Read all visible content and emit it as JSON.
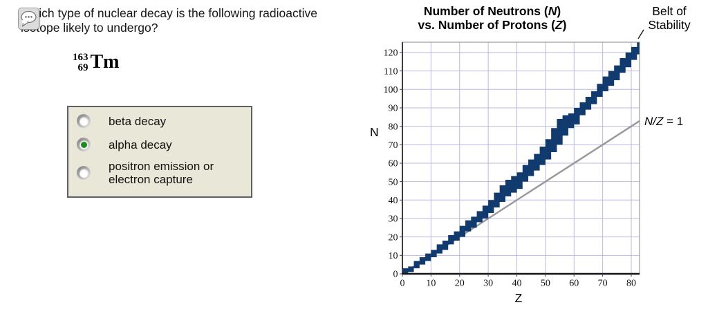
{
  "question": {
    "line1": "Which type of nuclear decay is the following radioactive",
    "line2": "isotope likely to undergo?"
  },
  "isotope": {
    "mass_number": "163",
    "atomic_number": "69",
    "symbol": "Tm"
  },
  "answers": {
    "options": [
      {
        "label": "beta decay",
        "selected": false
      },
      {
        "label": "alpha decay",
        "selected": true
      },
      {
        "lines": [
          "positron emission or",
          "electron capture"
        ],
        "selected": false
      }
    ]
  },
  "chart": {
    "title_line1_pre": "Number of Neutrons (",
    "title_line1_var": "N",
    "title_line1_post": ")",
    "title_line2_pre": "vs. Number of Protons (",
    "title_line2_var": "Z",
    "title_line2_post": ")",
    "belt_label_line1": "Belt of",
    "belt_label_line2": "Stability",
    "line_label_var": "N/Z",
    "line_label_post": " = 1",
    "ylabel": "N",
    "xlabel": "Z"
  },
  "chart_data": {
    "type": "area",
    "title": "Number of Neutrons (N) vs. Number of Protons (Z)",
    "xlabel": "Z",
    "ylabel": "N",
    "xlim": [
      0,
      82.9
    ],
    "ylim": [
      0,
      125.6
    ],
    "xticks": [
      0,
      10,
      20,
      30,
      40,
      50,
      60,
      70,
      80
    ],
    "yticks": [
      0,
      10,
      20,
      30,
      40,
      50,
      60,
      70,
      80,
      90,
      100,
      110,
      120
    ],
    "grid": true,
    "legend_position": "none",
    "annotations": [
      "Belt of Stability",
      "N/Z = 1"
    ],
    "colors": {
      "grid": "#b9b9e0",
      "belt": "#113a6e",
      "ref_line": "#9a9a9a"
    },
    "ref_line": {
      "label": "N/Z = 1",
      "from": [
        0,
        0
      ],
      "to": [
        82.9,
        82.9
      ]
    },
    "belt_band": {
      "samples": [
        [
          0,
          0,
          3
        ],
        [
          2,
          1,
          4
        ],
        [
          4,
          3,
          7
        ],
        [
          6,
          5,
          9
        ],
        [
          8,
          7,
          11
        ],
        [
          10,
          9,
          13
        ],
        [
          12,
          11,
          16
        ],
        [
          14,
          13,
          18
        ],
        [
          16,
          16,
          21
        ],
        [
          18,
          18,
          23
        ],
        [
          20,
          20,
          26
        ],
        [
          22,
          23,
          29
        ],
        [
          24,
          25,
          31
        ],
        [
          26,
          28,
          34
        ],
        [
          28,
          30,
          37
        ],
        [
          30,
          33,
          40
        ],
        [
          32,
          36,
          44
        ],
        [
          34,
          39,
          48
        ],
        [
          36,
          42,
          51
        ],
        [
          38,
          44,
          53
        ],
        [
          40,
          46,
          55
        ],
        [
          42,
          50,
          59
        ],
        [
          44,
          53,
          62
        ],
        [
          46,
          56,
          65
        ],
        [
          48,
          59,
          69
        ],
        [
          50,
          62,
          73
        ],
        [
          52,
          66,
          79
        ],
        [
          54,
          70,
          84
        ],
        [
          56,
          75,
          86
        ],
        [
          58,
          79,
          87
        ],
        [
          60,
          83,
          90
        ],
        [
          62,
          86,
          93
        ],
        [
          64,
          89,
          96
        ],
        [
          66,
          92,
          99
        ],
        [
          68,
          96,
          103
        ],
        [
          70,
          99,
          107
        ],
        [
          72,
          102,
          110
        ],
        [
          74,
          105,
          113
        ],
        [
          76,
          109,
          117
        ],
        [
          78,
          112,
          120
        ],
        [
          80,
          116,
          123
        ],
        [
          82,
          119,
          126
        ]
      ],
      "shelf": {
        "z_range": [
          56,
          62
        ],
        "n_range": [
          81,
          85
        ]
      }
    }
  }
}
